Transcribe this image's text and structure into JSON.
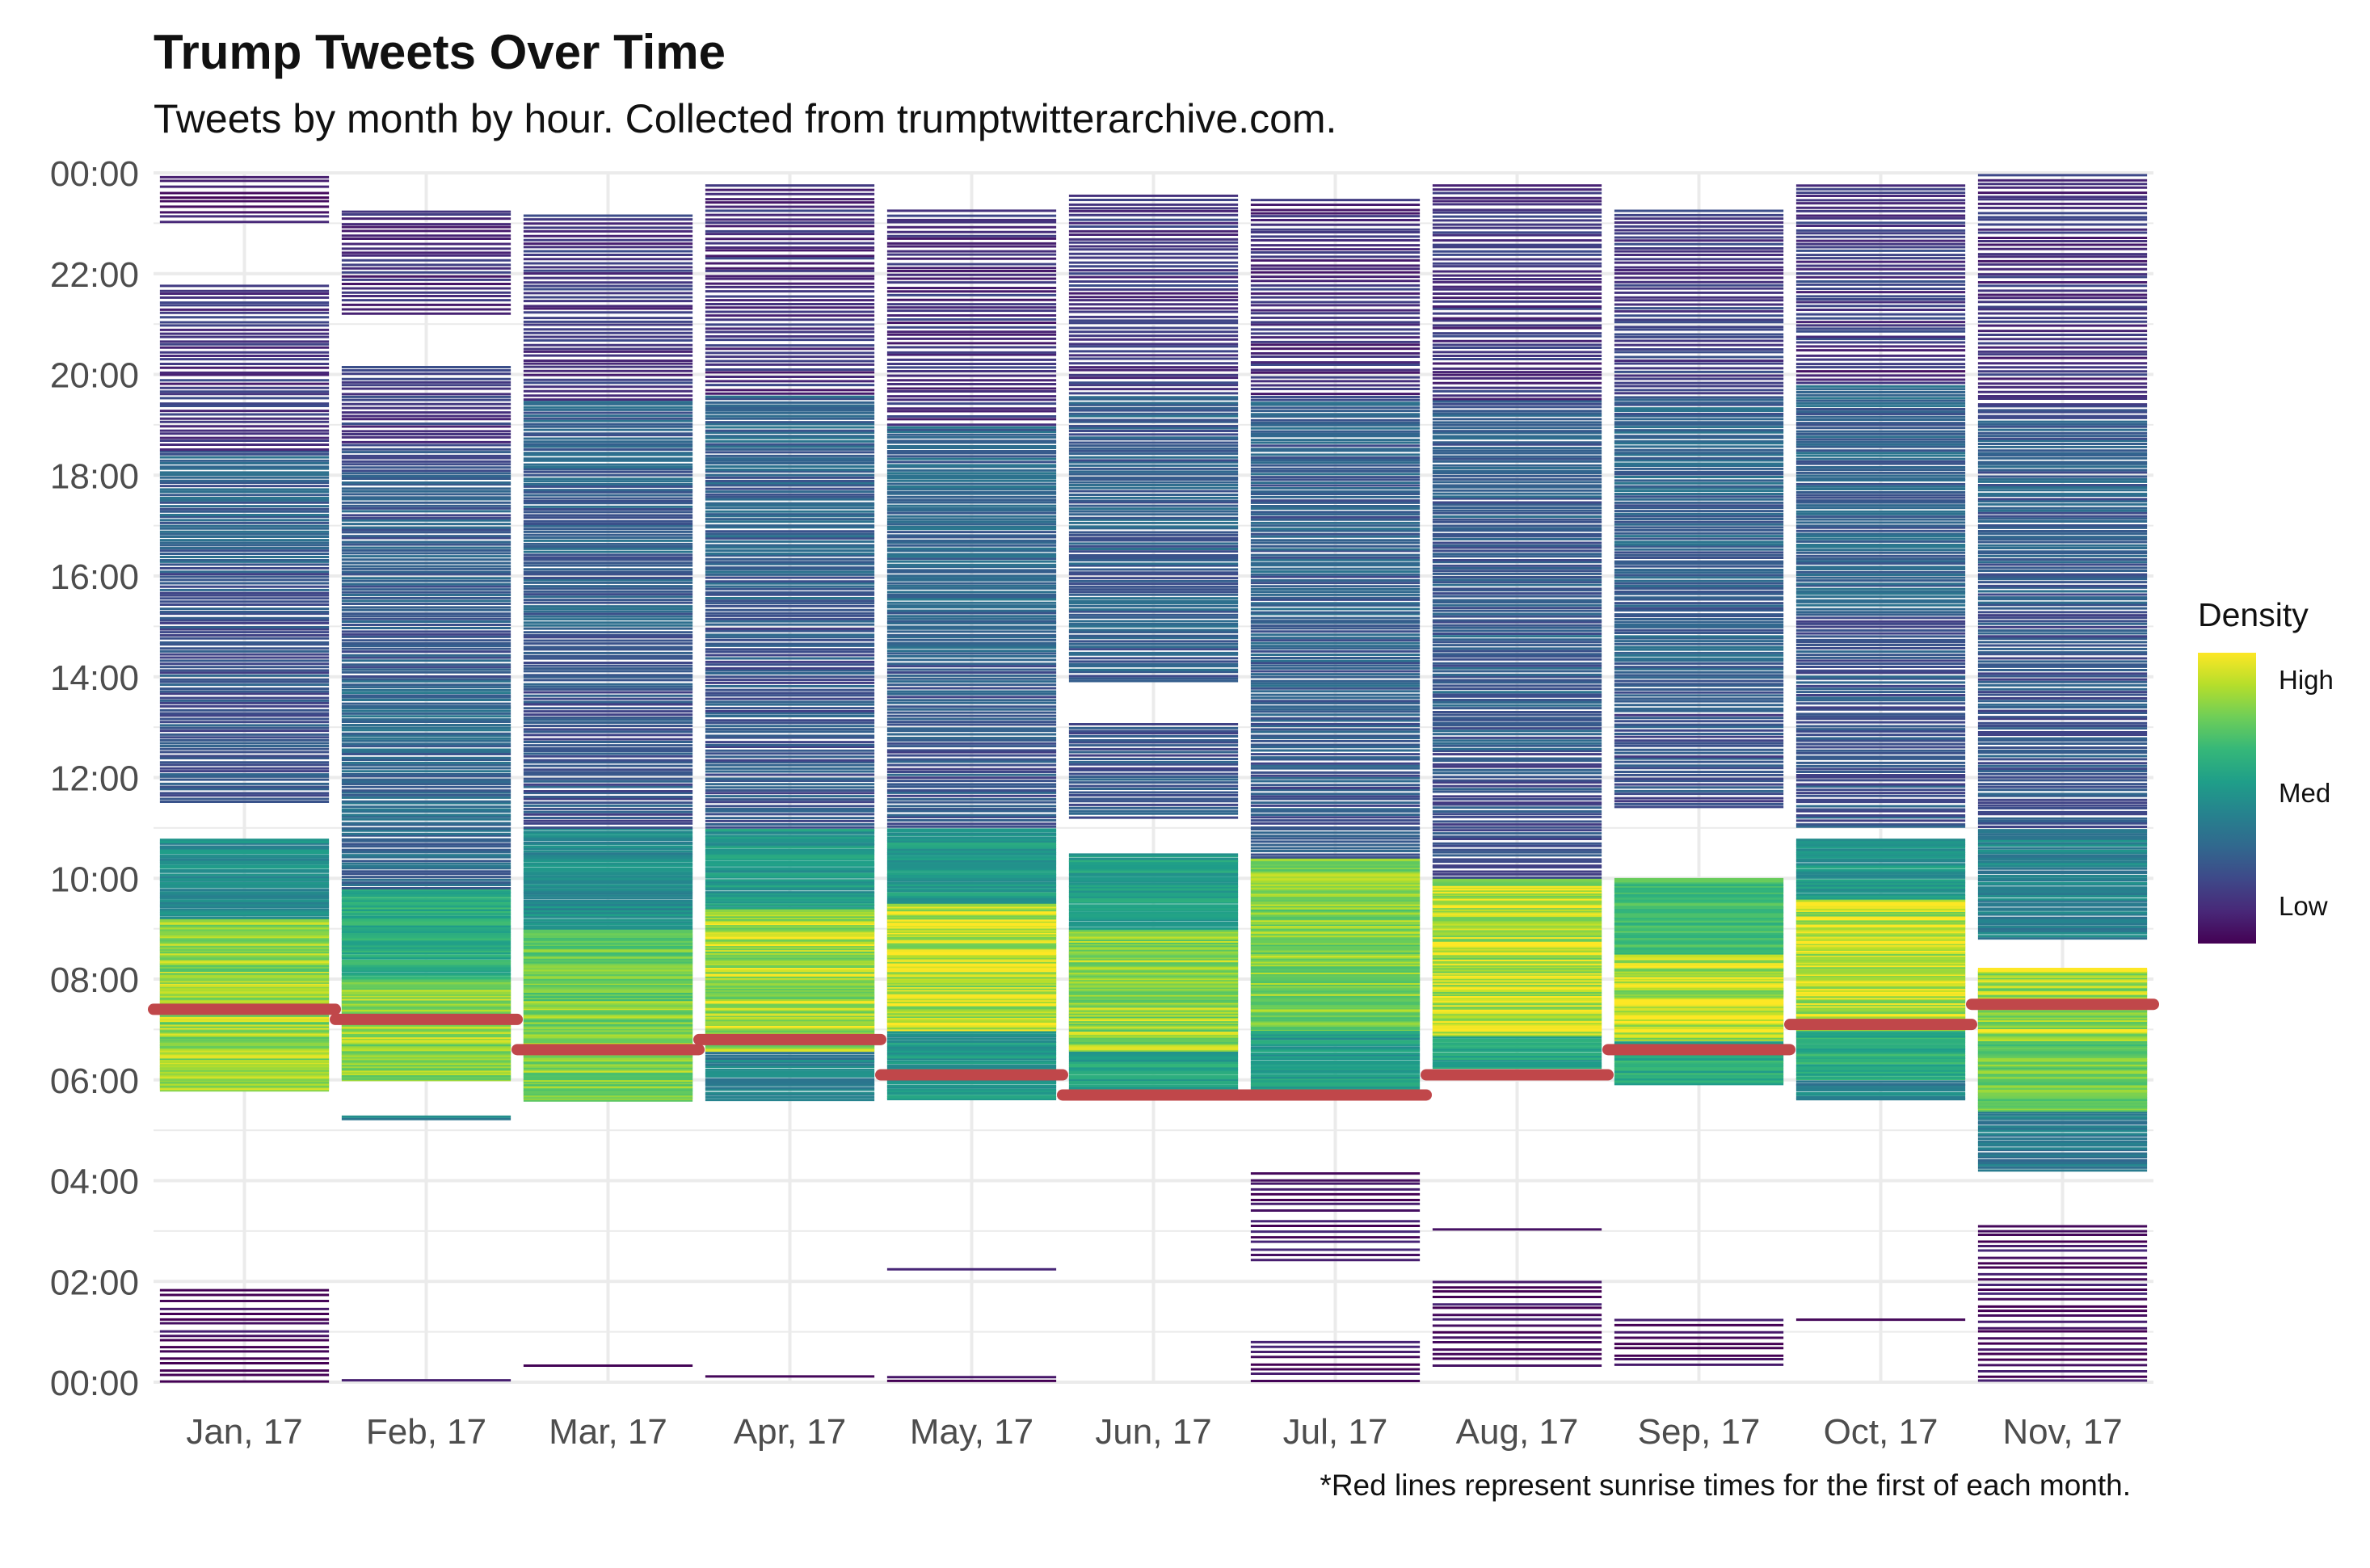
{
  "chart_data": {
    "type": "heatmap",
    "title": "Trump Tweets Over Time",
    "subtitle": "Tweets by month by hour. Collected from trumptwitterarchive.com.",
    "caption": "*Red lines represent sunrise times for the first of each month.",
    "xlabel": "",
    "ylabel": "",
    "y_unit": "hour of day",
    "ylim": [
      0,
      24
    ],
    "y_ticks": [
      0,
      2,
      4,
      6,
      8,
      10,
      12,
      14,
      16,
      18,
      20,
      22,
      24
    ],
    "y_tick_labels": [
      "00:00",
      "02:00",
      "04:00",
      "06:00",
      "08:00",
      "10:00",
      "12:00",
      "14:00",
      "16:00",
      "18:00",
      "20:00",
      "22:00",
      "00:00"
    ],
    "grid": true,
    "legend": {
      "title": "Density",
      "labels": [
        "High",
        "Med",
        "Low"
      ],
      "colors": [
        "#fde725",
        "#21918c",
        "#440154"
      ],
      "placement": "right"
    },
    "sunrise_color": "#c0474a",
    "months": [
      {
        "label": "Jan, 17",
        "sunrise": 7.4,
        "segments": [
          {
            "from": 5.8,
            "to": 9.2,
            "density": 0.9
          },
          {
            "from": 9.2,
            "to": 10.8,
            "density": 0.55
          },
          {
            "from": 11.5,
            "to": 16.2,
            "density": 0.3
          },
          {
            "from": 16.2,
            "to": 18.5,
            "density": 0.35
          },
          {
            "from": 18.5,
            "to": 21.8,
            "density": 0.18
          },
          {
            "from": 23.0,
            "to": 24.0,
            "density": 0.08
          },
          {
            "from": 0.0,
            "to": 1.9,
            "density": 0.04
          }
        ]
      },
      {
        "label": "Feb, 17",
        "sunrise": 7.2,
        "segments": [
          {
            "from": 5.2,
            "to": 5.3,
            "density": 0.5
          },
          {
            "from": 6.0,
            "to": 8.0,
            "density": 0.9
          },
          {
            "from": 8.0,
            "to": 9.8,
            "density": 0.7
          },
          {
            "from": 9.8,
            "to": 14.0,
            "density": 0.38
          },
          {
            "from": 14.0,
            "to": 18.5,
            "density": 0.32
          },
          {
            "from": 18.5,
            "to": 20.2,
            "density": 0.2
          },
          {
            "from": 21.2,
            "to": 23.3,
            "density": 0.15
          },
          {
            "from": 0.0,
            "to": 0.1,
            "density": 0.03
          }
        ]
      },
      {
        "label": "Mar, 17",
        "sunrise": 6.6,
        "segments": [
          {
            "from": 5.6,
            "to": 7.6,
            "density": 0.88
          },
          {
            "from": 7.6,
            "to": 9.0,
            "density": 0.85
          },
          {
            "from": 9.0,
            "to": 11.0,
            "density": 0.55
          },
          {
            "from": 11.0,
            "to": 15.0,
            "density": 0.3
          },
          {
            "from": 15.0,
            "to": 19.5,
            "density": 0.35
          },
          {
            "from": 19.5,
            "to": 23.2,
            "density": 0.18
          },
          {
            "from": 0.3,
            "to": 0.4,
            "density": 0.03
          }
        ]
      },
      {
        "label": "Apr, 17",
        "sunrise": 6.8,
        "segments": [
          {
            "from": 5.6,
            "to": 6.6,
            "density": 0.5
          },
          {
            "from": 6.6,
            "to": 9.4,
            "density": 0.92
          },
          {
            "from": 9.4,
            "to": 11.0,
            "density": 0.6
          },
          {
            "from": 11.0,
            "to": 15.5,
            "density": 0.3
          },
          {
            "from": 15.5,
            "to": 19.6,
            "density": 0.36
          },
          {
            "from": 19.6,
            "to": 23.8,
            "density": 0.16
          },
          {
            "from": 0.1,
            "to": 0.2,
            "density": 0.03
          }
        ]
      },
      {
        "label": "May, 17",
        "sunrise": 6.1,
        "segments": [
          {
            "from": 5.6,
            "to": 7.0,
            "density": 0.6
          },
          {
            "from": 7.0,
            "to": 9.5,
            "density": 0.95
          },
          {
            "from": 9.5,
            "to": 11.0,
            "density": 0.62
          },
          {
            "from": 11.0,
            "to": 14.5,
            "density": 0.3
          },
          {
            "from": 14.5,
            "to": 19.0,
            "density": 0.38
          },
          {
            "from": 19.0,
            "to": 23.3,
            "density": 0.16
          },
          {
            "from": 2.2,
            "to": 2.3,
            "density": 0.04
          },
          {
            "from": 0.0,
            "to": 0.2,
            "density": 0.03
          }
        ]
      },
      {
        "label": "Jun, 17",
        "sunrise": 5.7,
        "segments": [
          {
            "from": 5.8,
            "to": 6.6,
            "density": 0.65
          },
          {
            "from": 6.6,
            "to": 9.0,
            "density": 0.9
          },
          {
            "from": 9.0,
            "to": 10.5,
            "density": 0.65
          },
          {
            "from": 11.2,
            "to": 13.1,
            "density": 0.3
          },
          {
            "from": 13.9,
            "to": 19.6,
            "density": 0.34
          },
          {
            "from": 19.6,
            "to": 23.6,
            "density": 0.18
          }
        ]
      },
      {
        "label": "Jul, 17",
        "sunrise": 5.7,
        "segments": [
          {
            "from": 5.8,
            "to": 7.0,
            "density": 0.62
          },
          {
            "from": 7.0,
            "to": 10.4,
            "density": 0.88
          },
          {
            "from": 10.4,
            "to": 13.0,
            "density": 0.3
          },
          {
            "from": 13.0,
            "to": 19.6,
            "density": 0.34
          },
          {
            "from": 19.6,
            "to": 23.5,
            "density": 0.16
          },
          {
            "from": 3.4,
            "to": 4.2,
            "density": 0.05
          },
          {
            "from": 2.4,
            "to": 3.3,
            "density": 0.05
          },
          {
            "from": 0.0,
            "to": 0.9,
            "density": 0.04
          }
        ]
      },
      {
        "label": "Aug, 17",
        "sunrise": 6.1,
        "segments": [
          {
            "from": 6.0,
            "to": 6.9,
            "density": 0.65
          },
          {
            "from": 6.9,
            "to": 10.0,
            "density": 0.94
          },
          {
            "from": 10.0,
            "to": 12.5,
            "density": 0.28
          },
          {
            "from": 12.5,
            "to": 19.5,
            "density": 0.34
          },
          {
            "from": 19.5,
            "to": 23.8,
            "density": 0.18
          },
          {
            "from": 3.0,
            "to": 3.1,
            "density": 0.04
          },
          {
            "from": 0.3,
            "to": 2.1,
            "density": 0.04
          }
        ]
      },
      {
        "label": "Sep, 17",
        "sunrise": 6.6,
        "segments": [
          {
            "from": 5.9,
            "to": 6.8,
            "density": 0.7
          },
          {
            "from": 6.8,
            "to": 8.5,
            "density": 0.95
          },
          {
            "from": 8.5,
            "to": 10.0,
            "density": 0.78
          },
          {
            "from": 11.4,
            "to": 13.8,
            "density": 0.28
          },
          {
            "from": 13.8,
            "to": 19.6,
            "density": 0.36
          },
          {
            "from": 19.6,
            "to": 23.3,
            "density": 0.2
          },
          {
            "from": 0.3,
            "to": 1.3,
            "density": 0.04
          }
        ]
      },
      {
        "label": "Oct, 17",
        "sunrise": 7.1,
        "segments": [
          {
            "from": 5.6,
            "to": 6.0,
            "density": 0.5
          },
          {
            "from": 6.0,
            "to": 7.0,
            "density": 0.7
          },
          {
            "from": 7.0,
            "to": 9.6,
            "density": 0.95
          },
          {
            "from": 9.6,
            "to": 10.8,
            "density": 0.6
          },
          {
            "from": 11.0,
            "to": 15.4,
            "density": 0.3
          },
          {
            "from": 15.4,
            "to": 19.8,
            "density": 0.36
          },
          {
            "from": 19.8,
            "to": 20.6,
            "density": 0.14
          },
          {
            "from": 20.6,
            "to": 23.8,
            "density": 0.2
          },
          {
            "from": 1.2,
            "to": 1.3,
            "density": 0.04
          }
        ]
      },
      {
        "label": "Nov, 17",
        "sunrise": 7.5,
        "segments": [
          {
            "from": 4.2,
            "to": 5.4,
            "density": 0.45
          },
          {
            "from": 5.4,
            "to": 6.8,
            "density": 0.85
          },
          {
            "from": 6.8,
            "to": 8.2,
            "density": 0.92
          },
          {
            "from": 8.8,
            "to": 11.0,
            "density": 0.5
          },
          {
            "from": 11.0,
            "to": 15.4,
            "density": 0.3
          },
          {
            "from": 15.4,
            "to": 19.4,
            "density": 0.34
          },
          {
            "from": 19.4,
            "to": 24.0,
            "density": 0.16
          },
          {
            "from": 0.0,
            "to": 3.2,
            "density": 0.05
          }
        ]
      }
    ]
  }
}
